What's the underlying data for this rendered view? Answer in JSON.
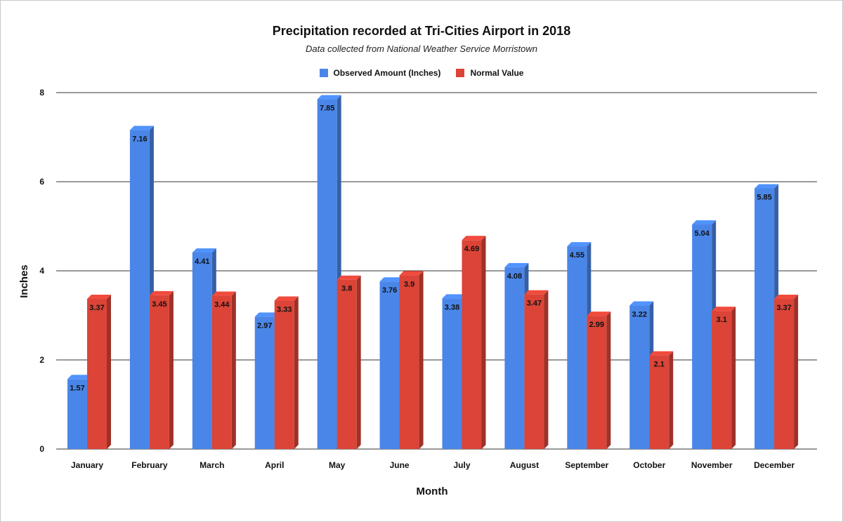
{
  "chart_data": {
    "type": "bar",
    "title": "Precipitation recorded at Tri-Cities Airport in 2018",
    "subtitle": "Data collected from National Weather Service Morristown",
    "xlabel": "Month",
    "ylabel": "Inches",
    "ylim": [
      0,
      8
    ],
    "yticks": [
      0,
      2,
      4,
      6,
      8
    ],
    "grid": true,
    "legend_position": "top",
    "categories": [
      "January",
      "February",
      "March",
      "April",
      "May",
      "June",
      "July",
      "August",
      "September",
      "October",
      "November",
      "December"
    ],
    "series": [
      {
        "name": "Observed Amount (Inches)",
        "color": "#4a86e8",
        "values": [
          1.57,
          7.16,
          4.41,
          2.97,
          7.85,
          3.76,
          3.38,
          4.08,
          4.55,
          3.22,
          5.04,
          5.85
        ]
      },
      {
        "name": "Normal Value",
        "color": "#db4437",
        "values": [
          3.37,
          3.45,
          3.44,
          3.33,
          3.8,
          3.9,
          4.69,
          3.47,
          2.99,
          2.1,
          3.1,
          3.37
        ]
      }
    ]
  }
}
